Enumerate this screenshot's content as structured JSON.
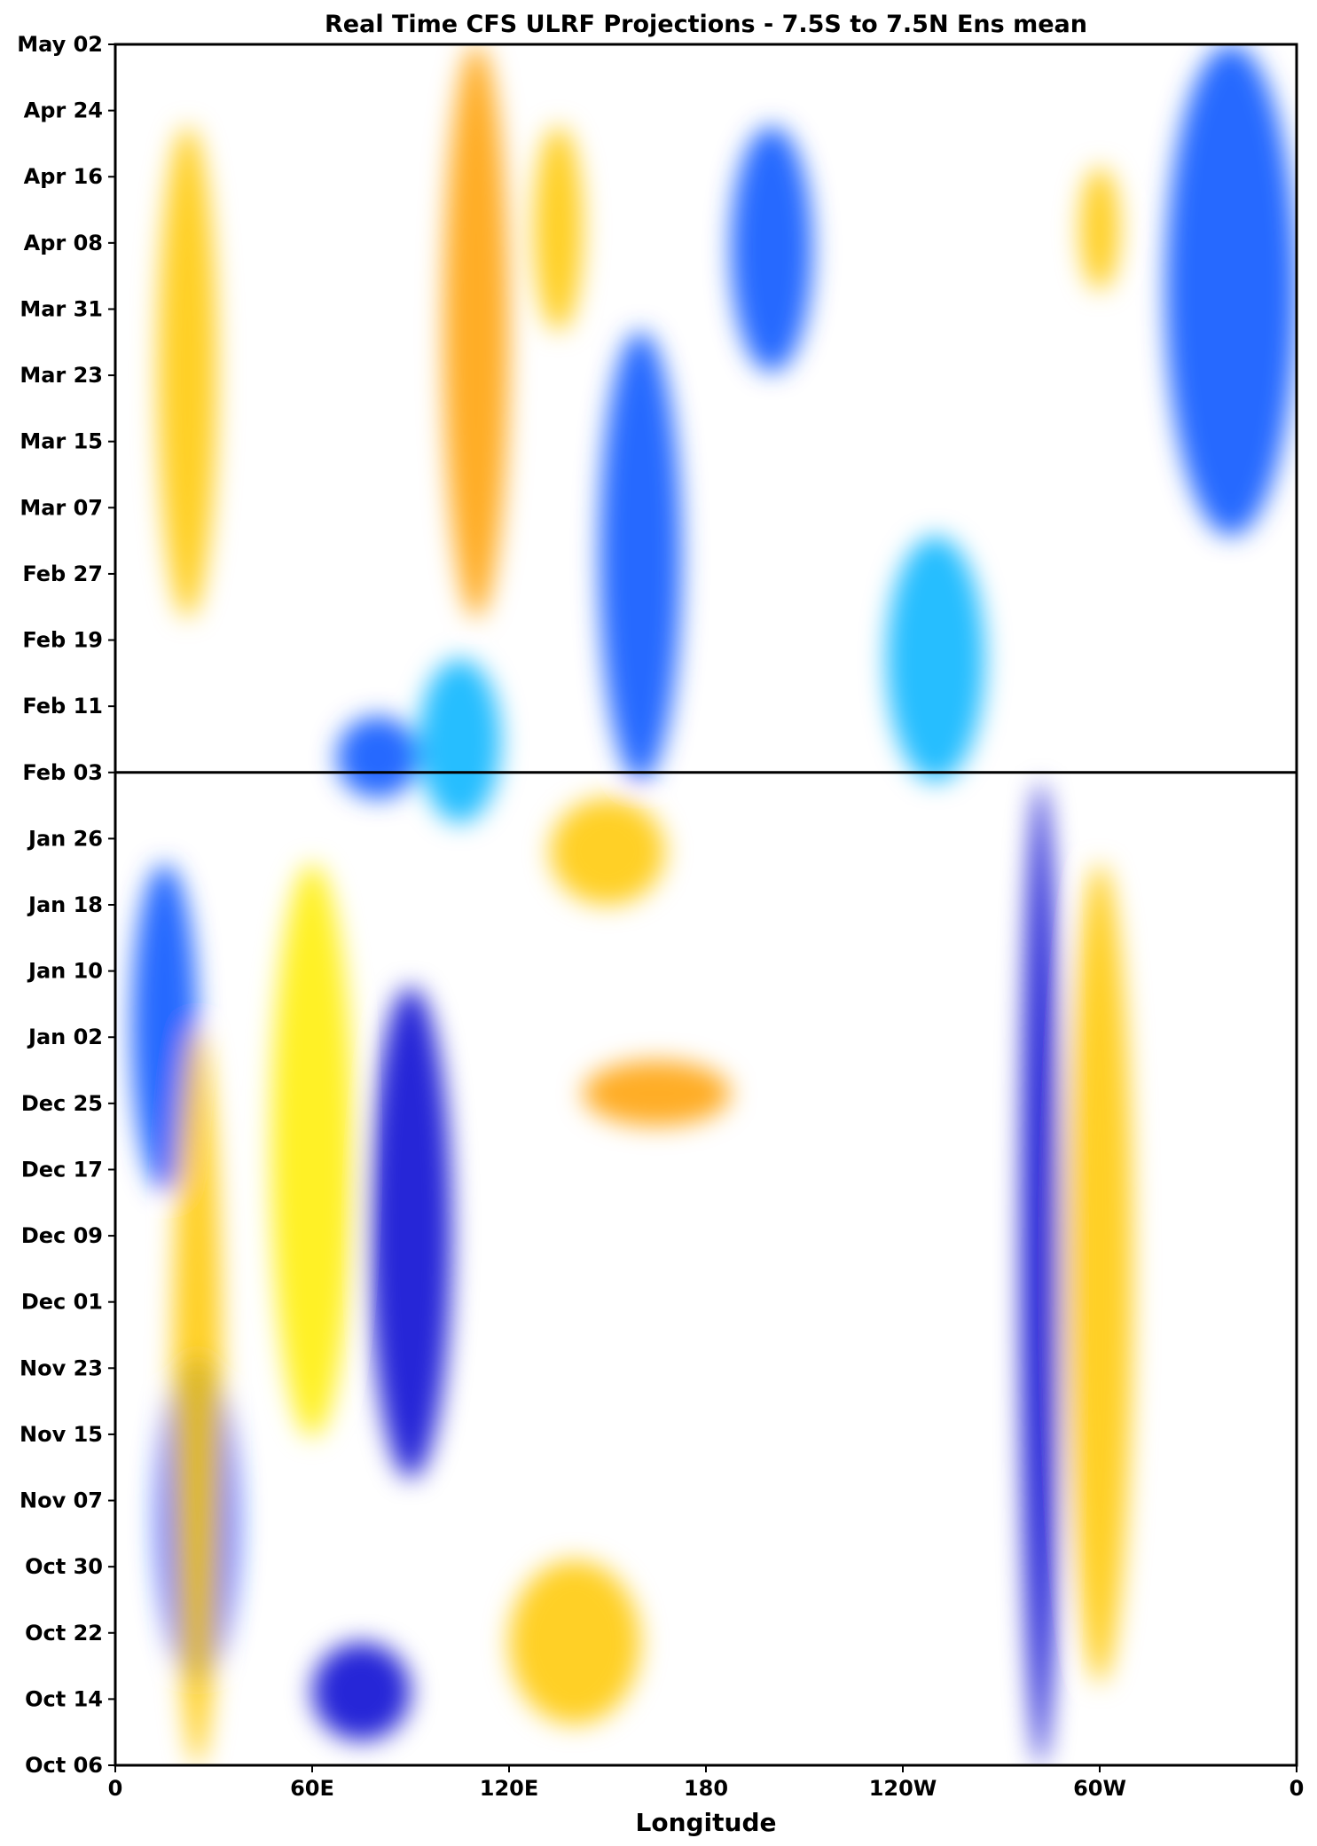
{
  "chart_data": {
    "type": "heatmap",
    "title": "Real Time CFS ULRF Projections - 7.5S to 7.5N Ens mean",
    "xlabel": "Longitude",
    "ylabel": "",
    "x_ticks": [
      "0",
      "60E",
      "120E",
      "180",
      "120W",
      "60W",
      "0"
    ],
    "x_range_deg_east": [
      0,
      360
    ],
    "y_ticks": [
      "Oct 06",
      "Oct 14",
      "Oct 22",
      "Oct 30",
      "Nov 07",
      "Nov 15",
      "Nov 23",
      "Dec 01",
      "Dec 09",
      "Dec 17",
      "Dec 25",
      "Jan 02",
      "Jan 10",
      "Jan 18",
      "Jan 26",
      "Feb 03",
      "Feb 11",
      "Feb 19",
      "Feb 27",
      "Mar 07",
      "Mar 15",
      "Mar 23",
      "Mar 31",
      "Apr 08",
      "Apr 16",
      "Apr 24",
      "May 02"
    ],
    "y_range_days_from_first_tick": [
      0,
      210
    ],
    "divider_at": "Feb 03",
    "y_axis_direction": "time increases upward",
    "colormap": {
      "negative": [
        "#00e5ff",
        "#00b3ff",
        "#0050ff",
        "#0000d0"
      ],
      "neutral": "#ffffff",
      "positive": [
        "#fffd9a",
        "#ffee00",
        "#ffc800",
        "#ff9f00"
      ]
    },
    "features": [
      {
        "kind": "negative",
        "lon": 340,
        "day_start": 150,
        "day_end": 210,
        "width": 40,
        "strength": 0.6
      },
      {
        "kind": "negative",
        "lon": 200,
        "day_start": 170,
        "day_end": 200,
        "width": 25,
        "strength": 0.7
      },
      {
        "kind": "negative",
        "lon": 160,
        "day_start": 120,
        "day_end": 175,
        "width": 25,
        "strength": 0.6
      },
      {
        "kind": "negative",
        "lon": 105,
        "day_start": 115,
        "day_end": 135,
        "width": 25,
        "strength": 0.5
      },
      {
        "kind": "negative",
        "lon": 80,
        "day_start": 118,
        "day_end": 128,
        "width": 25,
        "strength": 0.6
      },
      {
        "kind": "negative",
        "lon": 250,
        "day_start": 120,
        "day_end": 150,
        "width": 30,
        "strength": 0.35
      },
      {
        "kind": "negative",
        "lon": 282,
        "day_start": 0,
        "day_end": 120,
        "width": 12,
        "strength": 0.95
      },
      {
        "kind": "negative",
        "lon": 90,
        "day_start": 35,
        "day_end": 95,
        "width": 25,
        "strength": 1.0
      },
      {
        "kind": "negative",
        "lon": 75,
        "day_start": 3,
        "day_end": 15,
        "width": 30,
        "strength": 1.0
      },
      {
        "kind": "negative",
        "lon": 25,
        "day_start": 10,
        "day_end": 50,
        "width": 25,
        "strength": 0.55
      },
      {
        "kind": "negative",
        "lon": 15,
        "day_start": 70,
        "day_end": 110,
        "width": 20,
        "strength": 0.6
      },
      {
        "kind": "positive",
        "lon": 110,
        "day_start": 140,
        "day_end": 210,
        "width": 20,
        "strength": 0.85
      },
      {
        "kind": "positive",
        "lon": 135,
        "day_start": 175,
        "day_end": 200,
        "width": 15,
        "strength": 0.7
      },
      {
        "kind": "positive",
        "lon": 22,
        "day_start": 140,
        "day_end": 200,
        "width": 18,
        "strength": 0.6
      },
      {
        "kind": "positive",
        "lon": 300,
        "day_start": 180,
        "day_end": 195,
        "width": 12,
        "strength": 0.6
      },
      {
        "kind": "positive",
        "lon": 165,
        "day_start": 78,
        "day_end": 86,
        "width": 45,
        "strength": 0.85
      },
      {
        "kind": "positive",
        "lon": 150,
        "day_start": 105,
        "day_end": 118,
        "width": 35,
        "strength": 0.7
      },
      {
        "kind": "positive",
        "lon": 25,
        "day_start": 0,
        "day_end": 90,
        "width": 15,
        "strength": 0.65
      },
      {
        "kind": "positive",
        "lon": 300,
        "day_start": 10,
        "day_end": 110,
        "width": 20,
        "strength": 0.55
      },
      {
        "kind": "positive",
        "lon": 140,
        "day_start": 5,
        "day_end": 25,
        "width": 40,
        "strength": 0.6
      },
      {
        "kind": "positive",
        "lon": 60,
        "day_start": 40,
        "day_end": 110,
        "width": 25,
        "strength": 0.5
      }
    ]
  }
}
